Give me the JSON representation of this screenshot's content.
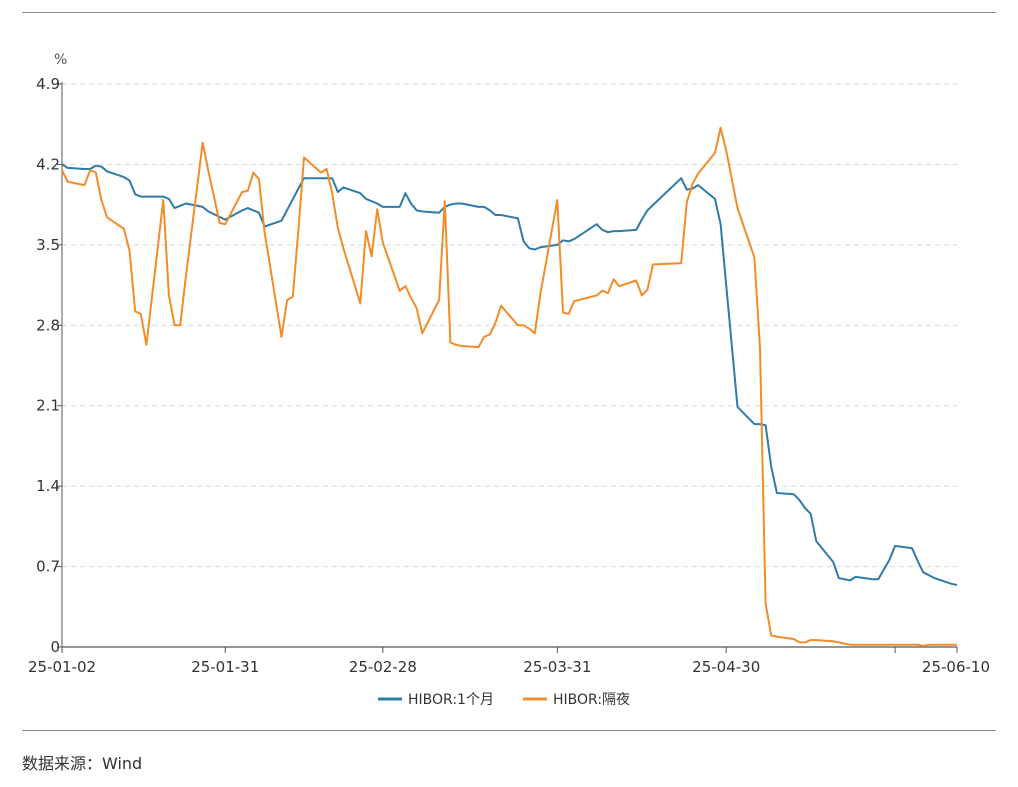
{
  "source_text": "数据来源：Wind",
  "chart_data": {
    "type": "line",
    "ylabel": "%",
    "ylim": [
      0,
      4.9
    ],
    "yticks": [
      0,
      0.7,
      1.4,
      2.1,
      2.8,
      3.5,
      4.2,
      4.9
    ],
    "ytick_labels": [
      "0",
      "0.7",
      "1.4",
      "2.1",
      "2.8",
      "3.5",
      "4.2",
      "4.9"
    ],
    "xlim": [
      "2025-01-02",
      "2025-06-10"
    ],
    "xticks": [
      "2025-01-02",
      "2025-01-31",
      "2025-02-28",
      "2025-03-31",
      "2025-04-30",
      "2025-06-10"
    ],
    "xtick_labels": [
      "25-01-02",
      "25-01-31",
      "25-02-28",
      "25-03-31",
      "25-04-30",
      "25-06-10"
    ],
    "grid": "horizontal-dashed",
    "legend": "bottom-center",
    "colors": {
      "hibor_1m": "#2e7ca6",
      "hibor_on": "#f28c28"
    },
    "series": [
      {
        "name": "HIBOR:1个月",
        "color": "#2e7ca6",
        "points": [
          [
            "2025-01-02",
            4.2
          ],
          [
            "2025-01-03",
            4.17
          ],
          [
            "2025-01-06",
            4.16
          ],
          [
            "2025-01-07",
            4.16
          ],
          [
            "2025-01-08",
            4.19
          ],
          [
            "2025-01-09",
            4.18
          ],
          [
            "2025-01-10",
            4.14
          ],
          [
            "2025-01-13",
            4.09
          ],
          [
            "2025-01-14",
            4.06
          ],
          [
            "2025-01-15",
            3.94
          ],
          [
            "2025-01-16",
            3.92
          ],
          [
            "2025-01-17",
            3.92
          ],
          [
            "2025-01-20",
            3.92
          ],
          [
            "2025-01-21",
            3.9
          ],
          [
            "2025-01-22",
            3.82
          ],
          [
            "2025-01-23",
            3.84
          ],
          [
            "2025-01-24",
            3.86
          ],
          [
            "2025-01-27",
            3.83
          ],
          [
            "2025-01-28",
            3.79
          ],
          [
            "2025-01-31",
            3.72
          ],
          [
            "2025-02-03",
            3.8
          ],
          [
            "2025-02-04",
            3.82
          ],
          [
            "2025-02-05",
            3.8
          ],
          [
            "2025-02-06",
            3.78
          ],
          [
            "2025-02-07",
            3.66
          ],
          [
            "2025-02-10",
            3.71
          ],
          [
            "2025-02-13",
            3.99
          ],
          [
            "2025-02-14",
            4.08
          ],
          [
            "2025-02-17",
            4.08
          ],
          [
            "2025-02-18",
            4.08
          ],
          [
            "2025-02-19",
            4.08
          ],
          [
            "2025-02-20",
            3.96
          ],
          [
            "2025-02-21",
            4.0
          ],
          [
            "2025-02-24",
            3.95
          ],
          [
            "2025-02-25",
            3.9
          ],
          [
            "2025-02-26",
            3.88
          ],
          [
            "2025-02-27",
            3.86
          ],
          [
            "2025-02-28",
            3.83
          ],
          [
            "2025-03-03",
            3.83
          ],
          [
            "2025-03-04",
            3.95
          ],
          [
            "2025-03-05",
            3.86
          ],
          [
            "2025-03-06",
            3.8
          ],
          [
            "2025-03-07",
            3.79
          ],
          [
            "2025-03-10",
            3.78
          ],
          [
            "2025-03-11",
            3.83
          ],
          [
            "2025-03-12",
            3.85
          ],
          [
            "2025-03-13",
            3.86
          ],
          [
            "2025-03-14",
            3.86
          ],
          [
            "2025-03-17",
            3.83
          ],
          [
            "2025-03-18",
            3.83
          ],
          [
            "2025-03-19",
            3.8
          ],
          [
            "2025-03-20",
            3.76
          ],
          [
            "2025-03-21",
            3.76
          ],
          [
            "2025-03-24",
            3.73
          ],
          [
            "2025-03-25",
            3.53
          ],
          [
            "2025-03-26",
            3.47
          ],
          [
            "2025-03-27",
            3.46
          ],
          [
            "2025-03-28",
            3.48
          ],
          [
            "2025-03-31",
            3.5
          ],
          [
            "2025-04-01",
            3.54
          ],
          [
            "2025-04-02",
            3.53
          ],
          [
            "2025-04-03",
            3.55
          ],
          [
            "2025-04-07",
            3.68
          ],
          [
            "2025-04-08",
            3.63
          ],
          [
            "2025-04-09",
            3.61
          ],
          [
            "2025-04-10",
            3.62
          ],
          [
            "2025-04-11",
            3.62
          ],
          [
            "2025-04-14",
            3.63
          ],
          [
            "2025-04-15",
            3.72
          ],
          [
            "2025-04-16",
            3.8
          ],
          [
            "2025-04-22",
            4.08
          ],
          [
            "2025-04-23",
            3.98
          ],
          [
            "2025-04-24",
            3.99
          ],
          [
            "2025-04-25",
            4.02
          ],
          [
            "2025-04-28",
            3.9
          ],
          [
            "2025-04-29",
            3.68
          ],
          [
            "2025-04-30",
            3.15
          ],
          [
            "2025-05-02",
            2.09
          ],
          [
            "2025-05-05",
            1.94
          ],
          [
            "2025-05-06",
            1.94
          ],
          [
            "2025-05-07",
            1.93
          ],
          [
            "2025-05-08",
            1.57
          ],
          [
            "2025-05-09",
            1.34
          ],
          [
            "2025-05-12",
            1.33
          ],
          [
            "2025-05-13",
            1.28
          ],
          [
            "2025-05-14",
            1.21
          ],
          [
            "2025-05-15",
            1.16
          ],
          [
            "2025-05-16",
            0.92
          ],
          [
            "2025-05-19",
            0.74
          ],
          [
            "2025-05-20",
            0.6
          ],
          [
            "2025-05-21",
            0.59
          ],
          [
            "2025-05-22",
            0.58
          ],
          [
            "2025-05-23",
            0.61
          ],
          [
            "2025-05-26",
            0.59
          ],
          [
            "2025-05-27",
            0.59
          ],
          [
            "2025-05-29",
            0.76
          ],
          [
            "2025-05-30",
            0.88
          ],
          [
            "2025-06-02",
            0.86
          ],
          [
            "2025-06-03",
            0.75
          ],
          [
            "2025-06-04",
            0.65
          ],
          [
            "2025-06-06",
            0.6
          ],
          [
            "2025-06-09",
            0.55
          ],
          [
            "2025-06-10",
            0.54
          ]
        ]
      },
      {
        "name": "HIBOR:隔夜",
        "color": "#f28c28",
        "points": [
          [
            "2025-01-02",
            4.15
          ],
          [
            "2025-01-03",
            4.05
          ],
          [
            "2025-01-06",
            4.02
          ],
          [
            "2025-01-07",
            4.15
          ],
          [
            "2025-01-08",
            4.13
          ],
          [
            "2025-01-09",
            3.89
          ],
          [
            "2025-01-10",
            3.74
          ],
          [
            "2025-01-13",
            3.64
          ],
          [
            "2025-01-14",
            3.45
          ],
          [
            "2025-01-15",
            2.92
          ],
          [
            "2025-01-16",
            2.9
          ],
          [
            "2025-01-17",
            2.63
          ],
          [
            "2025-01-20",
            3.89
          ],
          [
            "2025-01-21",
            3.06
          ],
          [
            "2025-01-22",
            2.8
          ],
          [
            "2025-01-23",
            2.8
          ],
          [
            "2025-01-24",
            3.22
          ],
          [
            "2025-01-27",
            4.39
          ],
          [
            "2025-01-28",
            4.14
          ],
          [
            "2025-01-29",
            3.92
          ],
          [
            "2025-01-30",
            3.69
          ],
          [
            "2025-01-31",
            3.68
          ],
          [
            "2025-02-03",
            3.96
          ],
          [
            "2025-02-04",
            3.97
          ],
          [
            "2025-02-05",
            4.13
          ],
          [
            "2025-02-06",
            4.07
          ],
          [
            "2025-02-07",
            3.61
          ],
          [
            "2025-02-10",
            2.7
          ],
          [
            "2025-02-11",
            3.02
          ],
          [
            "2025-02-12",
            3.05
          ],
          [
            "2025-02-13",
            3.63
          ],
          [
            "2025-02-14",
            4.26
          ],
          [
            "2025-02-17",
            4.13
          ],
          [
            "2025-02-18",
            4.16
          ],
          [
            "2025-02-19",
            3.95
          ],
          [
            "2025-02-20",
            3.65
          ],
          [
            "2025-02-21",
            3.47
          ],
          [
            "2025-02-24",
            2.99
          ],
          [
            "2025-02-25",
            3.62
          ],
          [
            "2025-02-26",
            3.4
          ],
          [
            "2025-02-27",
            3.81
          ],
          [
            "2025-02-28",
            3.52
          ],
          [
            "2025-03-03",
            3.1
          ],
          [
            "2025-03-04",
            3.14
          ],
          [
            "2025-03-05",
            3.04
          ],
          [
            "2025-03-06",
            2.95
          ],
          [
            "2025-03-07",
            2.73
          ],
          [
            "2025-03-10",
            3.02
          ],
          [
            "2025-03-11",
            3.88
          ],
          [
            "2025-03-12",
            2.65
          ],
          [
            "2025-03-13",
            2.63
          ],
          [
            "2025-03-14",
            2.62
          ],
          [
            "2025-03-17",
            2.61
          ],
          [
            "2025-03-18",
            2.7
          ],
          [
            "2025-03-19",
            2.72
          ],
          [
            "2025-03-20",
            2.82
          ],
          [
            "2025-03-21",
            2.97
          ],
          [
            "2025-03-24",
            2.8
          ],
          [
            "2025-03-25",
            2.8
          ],
          [
            "2025-03-26",
            2.77
          ],
          [
            "2025-03-27",
            2.73
          ],
          [
            "2025-03-28",
            3.08
          ],
          [
            "2025-03-31",
            3.89
          ],
          [
            "2025-04-01",
            2.91
          ],
          [
            "2025-04-02",
            2.9
          ],
          [
            "2025-04-03",
            3.01
          ],
          [
            "2025-04-07",
            3.06
          ],
          [
            "2025-04-08",
            3.1
          ],
          [
            "2025-04-09",
            3.08
          ],
          [
            "2025-04-10",
            3.2
          ],
          [
            "2025-04-11",
            3.14
          ],
          [
            "2025-04-14",
            3.19
          ],
          [
            "2025-04-15",
            3.06
          ],
          [
            "2025-04-16",
            3.11
          ],
          [
            "2025-04-17",
            3.33
          ],
          [
            "2025-04-22",
            3.34
          ],
          [
            "2025-04-23",
            3.87
          ],
          [
            "2025-04-24",
            4.03
          ],
          [
            "2025-04-25",
            4.12
          ],
          [
            "2025-04-28",
            4.3
          ],
          [
            "2025-04-29",
            4.52
          ],
          [
            "2025-04-30",
            4.32
          ],
          [
            "2025-05-02",
            3.82
          ],
          [
            "2025-05-05",
            3.39
          ],
          [
            "2025-05-06",
            2.6
          ],
          [
            "2025-05-07",
            0.38
          ],
          [
            "2025-05-08",
            0.1
          ],
          [
            "2025-05-09",
            0.09
          ],
          [
            "2025-05-12",
            0.07
          ],
          [
            "2025-05-13",
            0.04
          ],
          [
            "2025-05-14",
            0.04
          ],
          [
            "2025-05-15",
            0.06
          ],
          [
            "2025-05-16",
            0.06
          ],
          [
            "2025-05-19",
            0.05
          ],
          [
            "2025-05-20",
            0.04
          ],
          [
            "2025-05-21",
            0.03
          ],
          [
            "2025-05-22",
            0.02
          ],
          [
            "2025-05-23",
            0.02
          ],
          [
            "2025-05-26",
            0.02
          ],
          [
            "2025-05-27",
            0.02
          ],
          [
            "2025-05-28",
            0.02
          ],
          [
            "2025-05-29",
            0.02
          ],
          [
            "2025-05-30",
            0.02
          ],
          [
            "2025-06-02",
            0.02
          ],
          [
            "2025-06-03",
            0.02
          ],
          [
            "2025-06-04",
            0.01
          ],
          [
            "2025-06-05",
            0.02
          ],
          [
            "2025-06-06",
            0.02
          ],
          [
            "2025-06-09",
            0.02
          ],
          [
            "2025-06-10",
            0.02
          ]
        ]
      }
    ]
  }
}
